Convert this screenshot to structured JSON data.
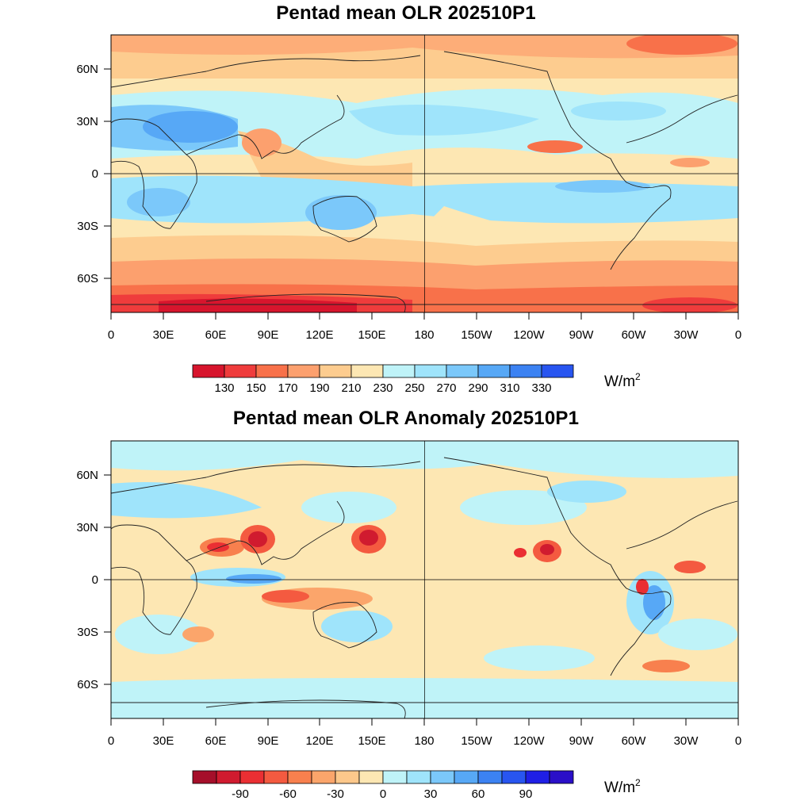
{
  "panels": [
    {
      "id": "olr",
      "title": "Pentad mean OLR 202510P1",
      "lat_labels": [
        "60N",
        "30N",
        "0",
        "30S",
        "60S"
      ],
      "lon_labels": [
        "0",
        "30E",
        "60E",
        "90E",
        "120E",
        "150E",
        "180",
        "150W",
        "120W",
        "90W",
        "60W",
        "30W",
        "0"
      ],
      "colorbar": {
        "colors": [
          "#d7152d",
          "#ef3c3c",
          "#f8714a",
          "#fca06e",
          "#fdcc8f",
          "#fde7b3",
          "#bff3f8",
          "#9fe4fb",
          "#7bc8fa",
          "#57a8f6",
          "#3c82f2",
          "#2855f0"
        ],
        "tick_labels": [
          "130",
          "150",
          "170",
          "190",
          "210",
          "230",
          "250",
          "270",
          "290",
          "310",
          "330"
        ],
        "unit_base": "W/m",
        "unit_exp": "2"
      }
    },
    {
      "id": "anom",
      "title": "Pentad mean OLR Anomaly 202510P1",
      "lat_labels": [
        "60N",
        "30N",
        "0",
        "30S",
        "60S"
      ],
      "lon_labels": [
        "0",
        "30E",
        "60E",
        "90E",
        "120E",
        "150E",
        "180",
        "150W",
        "120W",
        "90W",
        "60W",
        "30W",
        "0"
      ],
      "colorbar": {
        "colors": [
          "#a50f2a",
          "#d01b2f",
          "#ea2f33",
          "#f45a40",
          "#f8804e",
          "#fba56b",
          "#fdc88b",
          "#fde7b3",
          "#bff3f8",
          "#9fe4fb",
          "#7bc8fa",
          "#57a8f6",
          "#3c82f2",
          "#2855f0",
          "#1f1fe6",
          "#2a0fc8"
        ],
        "tick_labels": [
          "-90",
          "-60",
          "-30",
          "0",
          "30",
          "60",
          "90"
        ],
        "tick_label_positions": [
          2,
          4,
          6,
          8,
          10,
          12,
          14
        ],
        "unit_base": "W/m",
        "unit_exp": "2"
      }
    }
  ]
}
